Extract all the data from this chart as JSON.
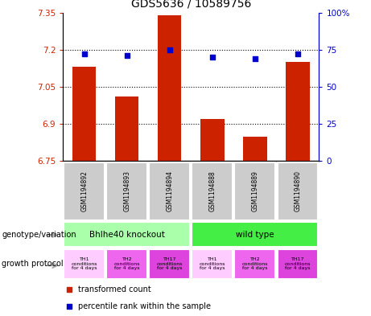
{
  "title": "GDS5636 / 10589756",
  "samples": [
    "GSM1194892",
    "GSM1194893",
    "GSM1194894",
    "GSM1194888",
    "GSM1194889",
    "GSM1194890"
  ],
  "transformed_count": [
    7.13,
    7.01,
    7.34,
    6.92,
    6.85,
    7.15
  ],
  "percentile_rank": [
    72,
    71,
    75,
    70,
    69,
    72
  ],
  "ylim_left": [
    6.75,
    7.35
  ],
  "ylim_right": [
    0,
    100
  ],
  "yticks_left": [
    6.75,
    6.9,
    7.05,
    7.2,
    7.35
  ],
  "yticks_right": [
    0,
    25,
    50,
    75,
    100
  ],
  "ytick_labels_left": [
    "6.75",
    "6.9",
    "7.05",
    "7.2",
    "7.35"
  ],
  "ytick_labels_right": [
    "0",
    "25",
    "50",
    "75",
    "100%"
  ],
  "hlines": [
    6.9,
    7.05,
    7.2
  ],
  "bar_color": "#cc2200",
  "dot_color": "#0000cc",
  "genotype_groups": [
    {
      "label": "Bhlhe40 knockout",
      "start": 0,
      "end": 3,
      "color": "#aaffaa"
    },
    {
      "label": "wild type",
      "start": 3,
      "end": 6,
      "color": "#44ee44"
    }
  ],
  "growth_protocols": [
    {
      "label": "TH1\nconditions\nfor 4 days",
      "color": "#ffccff"
    },
    {
      "label": "TH2\nconditions\nfor 4 days",
      "color": "#ee66ee"
    },
    {
      "label": "TH17\nconditions\nfor 4 days",
      "color": "#dd44dd"
    },
    {
      "label": "TH1\nconditions\nfor 4 days",
      "color": "#ffccff"
    },
    {
      "label": "TH2\nconditions\nfor 4 days",
      "color": "#ee66ee"
    },
    {
      "label": "TH17\nconditions\nfor 4 days",
      "color": "#dd44dd"
    }
  ],
  "legend_items": [
    {
      "label": "transformed count",
      "color": "#cc2200"
    },
    {
      "label": "percentile rank within the sample",
      "color": "#0000cc"
    }
  ],
  "left_axis_color": "#cc2200",
  "right_axis_color": "#0000cc",
  "background_color": "#ffffff",
  "label_genotype": "genotype/variation",
  "label_growth": "growth protocol",
  "sample_bg": "#cccccc",
  "arrow_color": "#aaaaaa"
}
